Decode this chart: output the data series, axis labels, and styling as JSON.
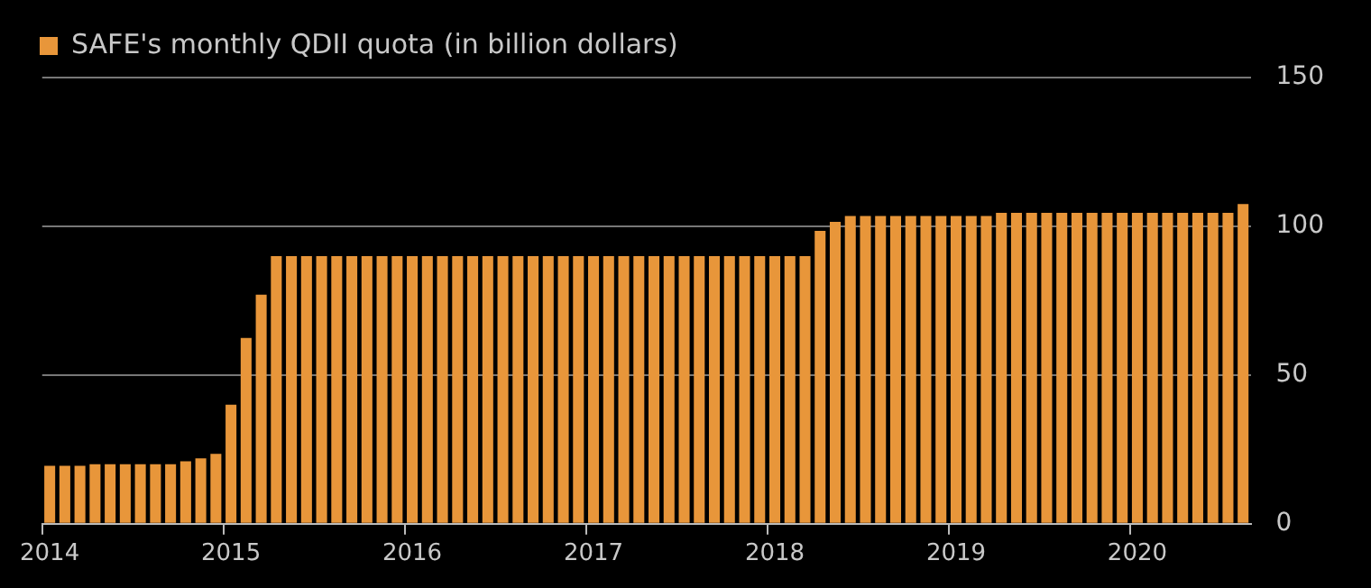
{
  "chart_data": {
    "type": "bar",
    "categories": [
      "2014",
      null,
      null,
      null,
      null,
      null,
      null,
      null,
      null,
      null,
      null,
      null,
      "2015",
      null,
      null,
      null,
      null,
      null,
      null,
      null,
      null,
      null,
      null,
      null,
      "2016",
      null,
      null,
      null,
      null,
      null,
      null,
      null,
      null,
      null,
      null,
      null,
      "2017",
      null,
      null,
      null,
      null,
      null,
      null,
      null,
      null,
      null,
      null,
      null,
      "2018",
      null,
      null,
      null,
      null,
      null,
      null,
      null,
      null,
      null,
      null,
      null,
      "2019",
      null,
      null,
      null,
      null,
      null,
      null,
      null,
      null,
      null,
      null,
      null,
      "2020",
      null,
      null,
      null,
      null,
      null,
      null,
      null
    ],
    "series": [
      {
        "name": "SAFE's monthly QDII quota (in billion dollars)",
        "color": "#e8963a",
        "values": [
          19.5,
          19.5,
          19.5,
          20,
          20,
          20,
          20,
          20,
          20,
          21,
          22,
          23.5,
          40,
          62.5,
          77,
          90,
          90,
          90,
          90,
          90,
          90,
          90,
          90,
          90,
          90,
          90,
          90,
          90,
          90,
          90,
          90,
          90,
          90,
          90,
          90,
          90,
          90,
          90,
          90,
          90,
          90,
          90,
          90,
          90,
          90,
          90,
          90,
          90,
          90,
          90,
          90,
          98.5,
          101.5,
          103.5,
          103.5,
          103.5,
          103.5,
          103.5,
          103.5,
          103.5,
          103.5,
          103.5,
          103.5,
          104.5,
          104.5,
          104.5,
          104.5,
          104.5,
          104.5,
          104.5,
          104.5,
          104.5,
          104.5,
          104.5,
          104.5,
          104.5,
          104.5,
          104.5,
          104.5,
          107.5
        ]
      }
    ],
    "ylim": [
      0,
      150
    ],
    "yticks": [
      0,
      50,
      100,
      150
    ],
    "grid": "y",
    "legend": "top left"
  }
}
